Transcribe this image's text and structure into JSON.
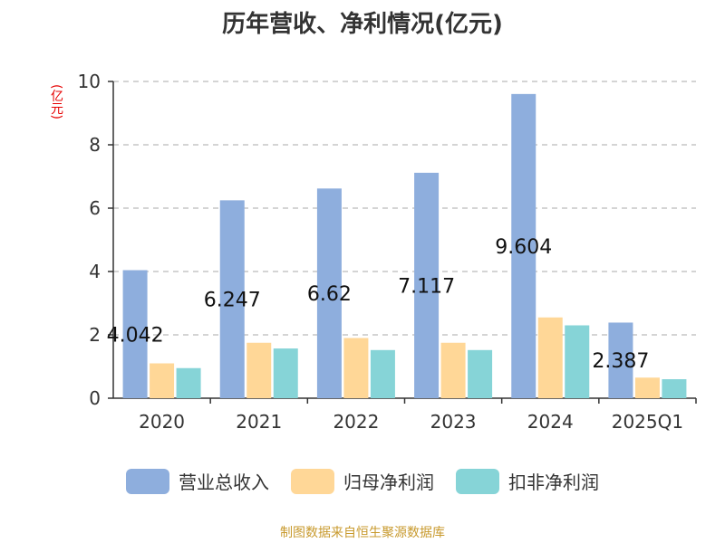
{
  "title": "历年营收、净利情况(亿元)",
  "unit_label": "(亿元)",
  "source": "制图数据来自恒生聚源数据库",
  "chart_data": {
    "type": "bar",
    "title": "历年营收、净利情况(亿元)",
    "ylabel": "(亿元)",
    "xlabel": "",
    "categories": [
      "2020",
      "2021",
      "2022",
      "2023",
      "2024",
      "2025Q1"
    ],
    "ylim": [
      0,
      10
    ],
    "yticks": [
      0,
      2,
      4,
      6,
      8,
      10
    ],
    "grid": true,
    "legend_position": "bottom",
    "series": [
      {
        "name": "营业总收入",
        "color": "#8eaedd",
        "values": [
          4.042,
          6.247,
          6.62,
          7.117,
          9.604,
          2.387
        ],
        "labels": [
          "4.042",
          "6.247",
          "6.62",
          "7.117",
          "9.604",
          "2.387"
        ]
      },
      {
        "name": "归母净利润",
        "color": "#ffd797",
        "values": [
          1.1,
          1.75,
          1.9,
          1.75,
          2.55,
          0.65
        ]
      },
      {
        "name": "扣非净利润",
        "color": "#86d4d7",
        "values": [
          0.95,
          1.57,
          1.52,
          1.52,
          2.3,
          0.6
        ]
      }
    ]
  }
}
